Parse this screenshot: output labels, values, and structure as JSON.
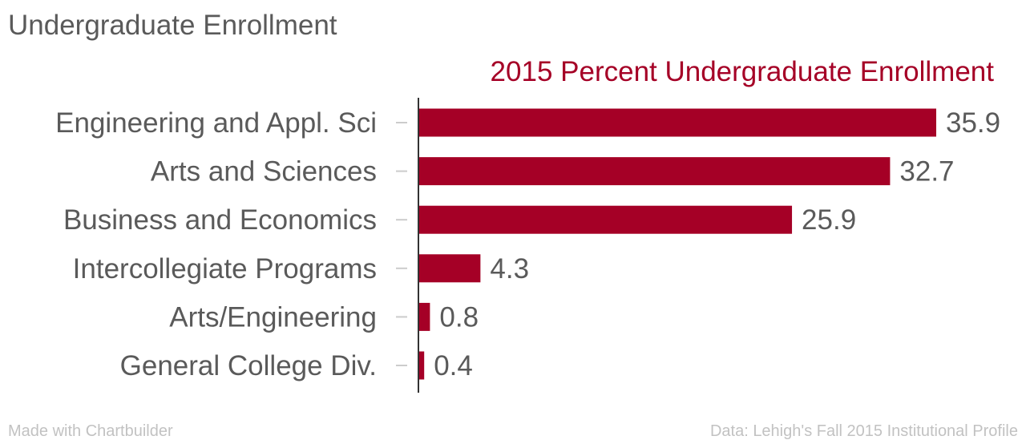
{
  "page": {
    "title": "Undergraduate Enrollment",
    "footer_left": "Made with Chartbuilder",
    "footer_right": "Data: Lehigh's Fall 2015 Institutional Profile"
  },
  "colors": {
    "bar": "#a50026",
    "chart_title": "#a50026",
    "text": "#5a5a5a",
    "footer": "#c2c2c2",
    "tick": "#cccccc",
    "axis": "#333333"
  },
  "chart_data": {
    "type": "bar",
    "orientation": "horizontal",
    "title": "2015 Percent Undergraduate Enrollment",
    "categories": [
      "Engineering and Appl. Sci",
      "Arts and Sciences",
      "Business and Economics",
      "Intercollegiate Programs",
      "Arts/Engineering",
      "General College Div."
    ],
    "values": [
      35.9,
      32.7,
      25.9,
      4.3,
      0.8,
      0.4
    ],
    "value_labels": [
      "35.9",
      "32.7",
      "25.9",
      "4.3",
      "0.8",
      "0.4"
    ],
    "xlim": [
      0,
      35.9
    ],
    "grid": false,
    "legend": "none"
  }
}
